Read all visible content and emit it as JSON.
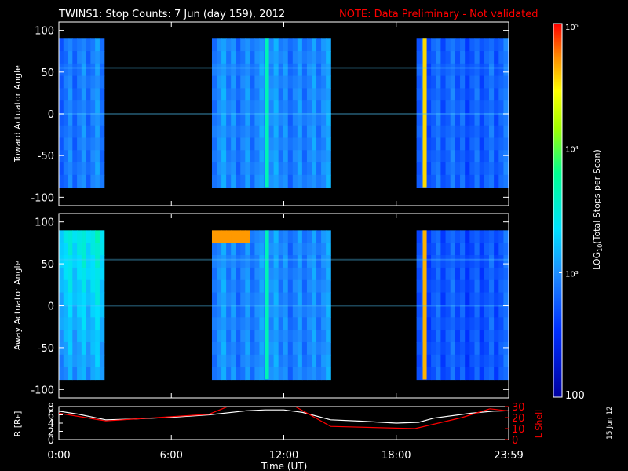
{
  "title": {
    "main": "TWINS1: Stop Counts:  7 Jun (day 159), 2012",
    "note": "NOTE: Data Preliminary - Not validated",
    "note_color": "#ff0000"
  },
  "side_date": "15 Jun 12",
  "chart_data": [
    {
      "type": "heatmap",
      "name": "toward",
      "ylabel": "Toward Actuator Angle",
      "ylim": [
        -110,
        110
      ],
      "yticks": [
        "100",
        "50",
        "0",
        "-50",
        "-100"
      ],
      "ytick_values": [
        100,
        50,
        0,
        -50,
        -100
      ],
      "data_ylim": [
        -88,
        90
      ],
      "xlim_hours": [
        0,
        24
      ],
      "segments": [
        {
          "start": "0:00",
          "end": "2:25",
          "level": 0.28
        },
        {
          "start": "8:10",
          "end": "14:30",
          "level": 0.3
        },
        {
          "start": "19:05",
          "end": "23:59",
          "level": 0.24
        }
      ],
      "bright_stripes": [
        {
          "time": "11:05",
          "level": 0.55
        },
        {
          "time": "19:30",
          "level": 0.85
        }
      ]
    },
    {
      "type": "heatmap",
      "name": "away",
      "ylabel": "Away Actuator Angle",
      "ylim": [
        -110,
        110
      ],
      "yticks": [
        "100",
        "50",
        "0",
        "-50",
        "-100"
      ],
      "ytick_values": [
        100,
        50,
        0,
        -50,
        -100
      ],
      "data_ylim": [
        -88,
        90
      ],
      "xlim_hours": [
        0,
        24
      ],
      "segments": [
        {
          "start": "0:00",
          "end": "2:25",
          "level": 0.32
        },
        {
          "start": "8:10",
          "end": "14:30",
          "level": 0.3
        },
        {
          "start": "19:05",
          "end": "23:59",
          "level": 0.22
        }
      ],
      "bright_stripes": [
        {
          "time": "11:05",
          "level": 0.55
        },
        {
          "time": "19:30",
          "level": 0.88
        }
      ]
    },
    {
      "type": "line",
      "name": "orbit",
      "ylabel_left": "R [Rᴇ]",
      "ylabel_right": "L Shell",
      "yticks_left": [
        "8",
        "6",
        "4",
        "2",
        "0"
      ],
      "yticks_left_values": [
        8,
        6,
        4,
        2,
        0
      ],
      "ylim_left": [
        0,
        8
      ],
      "yticks_right": [
        "30",
        "20",
        "10",
        "0"
      ],
      "yticks_right_values": [
        30,
        20,
        10,
        0
      ],
      "ylim_right": [
        0,
        30
      ],
      "xlabel": "Time (UT)",
      "xticks": [
        "0:00",
        "6:00",
        "12:00",
        "18:00",
        "23:59"
      ],
      "xtick_hours": [
        0,
        6,
        12,
        18,
        24
      ],
      "series": [
        {
          "name": "R",
          "color": "#ffffff",
          "x_hours": [
            0,
            1,
            2.5,
            4,
            6,
            8,
            10,
            11,
            12,
            13,
            14.5,
            16,
            18,
            19.2,
            20,
            22,
            23.2,
            24
          ],
          "y": [
            6.9,
            6.2,
            4.8,
            5.0,
            5.4,
            6.0,
            7.0,
            7.2,
            7.2,
            6.6,
            4.8,
            4.5,
            4.0,
            4.2,
            5.2,
            6.4,
            6.9,
            7.0
          ]
        },
        {
          "name": "L Shell",
          "color": "#ff0000",
          "x_hours": [
            0,
            2.5,
            8,
            9.3,
            12.4,
            14.5,
            19,
            21.5,
            23,
            24
          ],
          "y": [
            24,
            17,
            23,
            32,
            32,
            12,
            10,
            20,
            28,
            26
          ]
        }
      ]
    }
  ],
  "colorbar": {
    "label": "LOG10(Total Stops per Scan)",
    "label_base": "LOG",
    "label_sub": "10",
    "label_rest": "(Total Stops per Scan)",
    "ticks": [
      "10⁵",
      "10⁴",
      "10³",
      "100"
    ],
    "tick_fracs": [
      1.0,
      0.667,
      0.333,
      0.0
    ]
  }
}
